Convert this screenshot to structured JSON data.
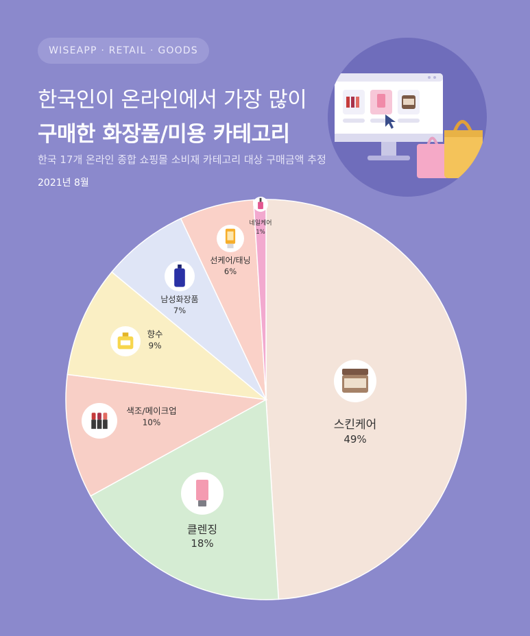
{
  "header": {
    "badge": "WISEAPP · RETAIL · GOODS",
    "title_line1": "한국인이 온라인에서 가장 많이",
    "title_line2": "구매한 화장품/미용 카테고리",
    "subtitle": "한국 17개 온라인 종합 쇼핑몰 소비재 카테고리 대상 구매금액 추정",
    "date": "2021년 8월"
  },
  "chart_data": {
    "type": "pie",
    "title": "한국인이 온라인에서 가장 많이 구매한 화장품/미용 카테고리",
    "unit": "%",
    "slices": [
      {
        "label": "스킨케어",
        "value": 49,
        "value_label": "49%",
        "color": "#f4e4da",
        "icon": "skincare-jar-icon"
      },
      {
        "label": "클렌징",
        "value": 18,
        "value_label": "18%",
        "color": "#d5ecd3",
        "icon": "cleansing-tube-icon"
      },
      {
        "label": "색조/메이크업",
        "value": 10,
        "value_label": "10%",
        "color": "#f8cfc6",
        "icon": "lipstick-icon"
      },
      {
        "label": "향수",
        "value": 9,
        "value_label": "9%",
        "color": "#faefc4",
        "icon": "perfume-icon"
      },
      {
        "label": "남성화장품",
        "value": 7,
        "value_label": "7%",
        "color": "#dfe5f6",
        "icon": "mens-bottle-icon"
      },
      {
        "label": "선케어/태닝",
        "value": 6,
        "value_label": "6%",
        "color": "#fad1c8",
        "icon": "sunscreen-icon"
      },
      {
        "label": "네일케어",
        "value": 1,
        "value_label": "1%",
        "color": "#f2a9cf",
        "icon": "nail-polish-icon"
      }
    ]
  }
}
